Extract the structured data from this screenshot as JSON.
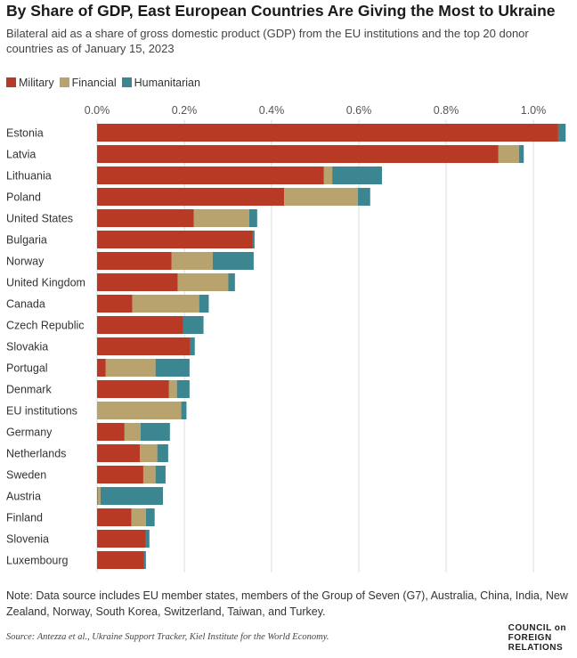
{
  "chart_data": {
    "type": "bar",
    "orientation": "horizontal",
    "stacked": true,
    "title": "By Share of GDP, East European Countries Are Giving the Most to Ukraine",
    "subtitle": "Bilateral aid as a share of gross domestic product (GDP) from the EU institutions and the top 20 donor countries as of January 15, 2023",
    "xlim": [
      0,
      1.07
    ],
    "x_ticks": [
      0,
      0.2,
      0.4,
      0.6,
      0.8,
      1.0
    ],
    "x_tick_labels": [
      "0.0%",
      "0.2%",
      "0.4%",
      "0.6%",
      "0.8%",
      "1.0%"
    ],
    "grid": true,
    "legend_position": "top-left",
    "categories": [
      "Estonia",
      "Latvia",
      "Lithuania",
      "Poland",
      "United States",
      "Bulgaria",
      "Norway",
      "United Kingdom",
      "Canada",
      "Czech Republic",
      "Slovakia",
      "Portugal",
      "Denmark",
      "EU institutions",
      "Germany",
      "Netherlands",
      "Sweden",
      "Austria",
      "Finland",
      "Slovenia",
      "Luxembourg"
    ],
    "series": [
      {
        "name": "Military",
        "color": "#b83a24",
        "values": [
          1.057,
          0.92,
          0.52,
          0.429,
          0.222,
          0.357,
          0.171,
          0.185,
          0.081,
          0.197,
          0.214,
          0.02,
          0.165,
          0.0,
          0.063,
          0.098,
          0.106,
          0.001,
          0.079,
          0.112,
          0.108
        ]
      },
      {
        "name": "Financial",
        "color": "#b8a26e",
        "values": [
          0.0,
          0.047,
          0.019,
          0.169,
          0.127,
          0.0,
          0.094,
          0.116,
          0.153,
          0.0,
          0.0,
          0.114,
          0.018,
          0.193,
          0.037,
          0.04,
          0.028,
          0.007,
          0.033,
          0.0,
          0.0
        ]
      },
      {
        "name": "Humanitarian",
        "color": "#3b8690",
        "values": [
          0.017,
          0.011,
          0.114,
          0.028,
          0.018,
          0.004,
          0.094,
          0.015,
          0.022,
          0.047,
          0.01,
          0.078,
          0.029,
          0.012,
          0.067,
          0.025,
          0.023,
          0.143,
          0.02,
          0.008,
          0.004
        ]
      }
    ]
  },
  "note": "Note: Data source includes EU member states, members of the Group of Seven (G7), Australia, China, India, New Zealand, Norway, South Korea, Switzerland, Taiwan, and Turkey.",
  "source": "Source: Antezza et al., Ukraine Support Tracker, Kiel Institute for the World Economy.",
  "logo": [
    "COUNCIL on",
    "FOREIGN",
    "RELATIONS"
  ]
}
